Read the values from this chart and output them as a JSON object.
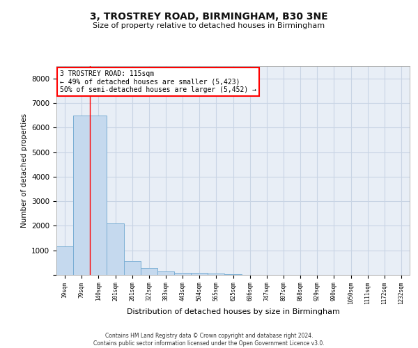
{
  "title1": "3, TROSTREY ROAD, BIRMINGHAM, B30 3NE",
  "title2": "Size of property relative to detached houses in Birmingham",
  "xlabel": "Distribution of detached houses by size in Birmingham",
  "ylabel": "Number of detached properties",
  "categories": [
    "19sqm",
    "79sqm",
    "140sqm",
    "201sqm",
    "261sqm",
    "322sqm",
    "383sqm",
    "443sqm",
    "504sqm",
    "565sqm",
    "625sqm",
    "686sqm",
    "747sqm",
    "807sqm",
    "868sqm",
    "929sqm",
    "990sqm",
    "1050sqm",
    "1111sqm",
    "1172sqm",
    "1232sqm"
  ],
  "values": [
    1150,
    6500,
    6480,
    2100,
    580,
    290,
    145,
    95,
    75,
    45,
    20,
    8,
    4,
    3,
    2,
    1,
    1,
    1,
    1,
    1,
    1
  ],
  "bar_color": "#c5d9ee",
  "bar_edge_color": "#7aaed4",
  "grid_color": "#c8d4e4",
  "background_color": "#e8eef6",
  "red_line_x": 1.5,
  "annotation_line1": "3 TROSTREY ROAD: 115sqm",
  "annotation_line2": "← 49% of detached houses are smaller (5,423)",
  "annotation_line3": "50% of semi-detached houses are larger (5,452) →",
  "ylim": [
    0,
    8500
  ],
  "yticks": [
    0,
    1000,
    2000,
    3000,
    4000,
    5000,
    6000,
    7000,
    8000
  ],
  "footer1": "Contains HM Land Registry data © Crown copyright and database right 2024.",
  "footer2": "Contains public sector information licensed under the Open Government Licence v3.0."
}
